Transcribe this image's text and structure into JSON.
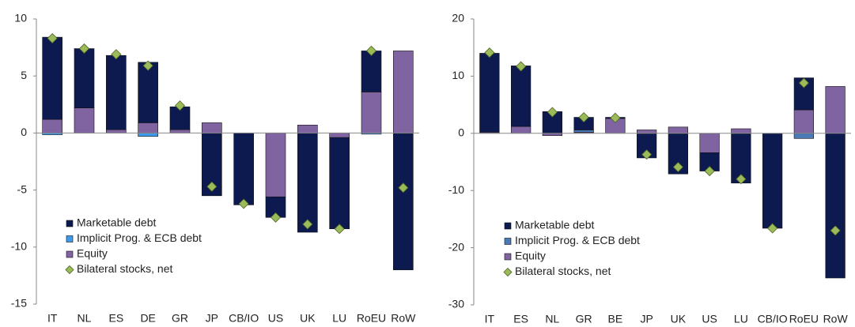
{
  "chart_data": [
    {
      "type": "bar",
      "stacked": true,
      "categories": [
        "IT",
        "NL",
        "ES",
        "DE",
        "GR",
        "JP",
        "CB/IO",
        "US",
        "UK",
        "LU",
        "RoEU",
        "RoW"
      ],
      "ylim": [
        -15,
        10
      ],
      "yticks": [
        -15,
        -10,
        -5,
        0,
        5,
        10
      ],
      "series": [
        {
          "name": "Marketable debt",
          "color": "#0c1a4f",
          "values": [
            7.2,
            5.2,
            6.5,
            5.3,
            2.0,
            -5.5,
            -6.3,
            -1.8,
            -8.7,
            -8.0,
            3.6,
            -12.0
          ]
        },
        {
          "name": "Implicit Prog. & ECB debt",
          "color": "#3d9be9",
          "values": [
            -0.15,
            0,
            0,
            -0.3,
            0,
            0,
            0,
            0,
            0,
            0,
            -0.1,
            0
          ]
        },
        {
          "name": "Equity",
          "color": "#8064a2",
          "values": [
            1.2,
            2.2,
            0.3,
            0.9,
            0.3,
            0.9,
            0,
            -5.6,
            0.7,
            -0.4,
            3.6,
            7.2
          ]
        },
        {
          "name": "Bilateral stocks, net",
          "type": "scatter",
          "color": "#9bbb59",
          "values": [
            8.3,
            7.4,
            6.9,
            5.9,
            2.4,
            -4.7,
            -6.2,
            -7.4,
            -8.0,
            -8.4,
            7.2,
            -4.8
          ]
        }
      ]
    },
    {
      "type": "bar",
      "stacked": true,
      "categories": [
        "IT",
        "ES",
        "NL",
        "GR",
        "BE",
        "JP",
        "UK",
        "US",
        "LU",
        "CB/IO",
        "RoEU",
        "RoW"
      ],
      "ylim": [
        -30,
        20
      ],
      "yticks": [
        -30,
        -20,
        -10,
        0,
        10,
        20
      ],
      "series": [
        {
          "name": "Marketable debt",
          "color": "#0c1a4f",
          "values": [
            13.8,
            10.6,
            3.8,
            2.2,
            0.2,
            -4.3,
            -7.1,
            -3.2,
            -8.7,
            -16.6,
            5.6,
            -25.3
          ]
        },
        {
          "name": "Implicit Prog. & ECB debt",
          "color": "#4a7ab8",
          "values": [
            0,
            0,
            0,
            0.4,
            0,
            0,
            0,
            0,
            0,
            0,
            -0.9,
            0
          ]
        },
        {
          "name": "Equity",
          "color": "#8064a2",
          "values": [
            0.2,
            1.2,
            -0.4,
            0.2,
            2.6,
            0.6,
            1.1,
            -3.4,
            0.8,
            0,
            4.1,
            8.2
          ]
        },
        {
          "name": "Bilateral stocks, net",
          "type": "scatter",
          "color": "#9bbb59",
          "values": [
            14.1,
            11.7,
            3.7,
            2.8,
            2.7,
            -3.7,
            -5.9,
            -6.6,
            -8.0,
            -16.6,
            8.8,
            -17.0
          ]
        }
      ]
    }
  ]
}
